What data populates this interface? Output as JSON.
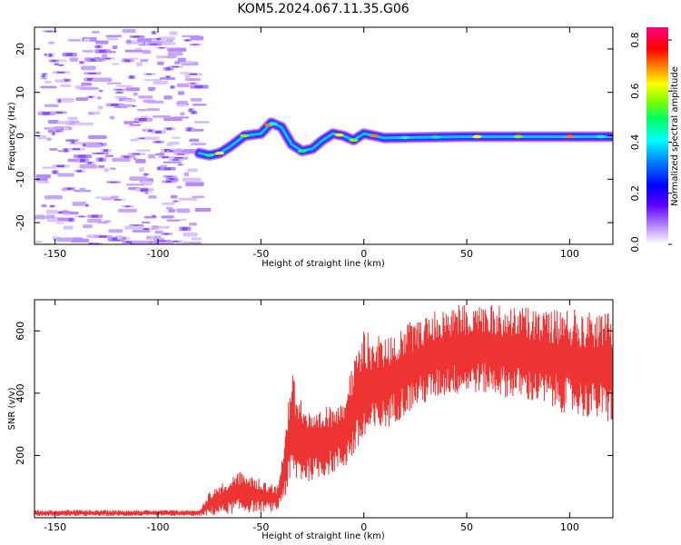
{
  "title": "KOM5.2024.067.11.35.G06",
  "chart_data": [
    {
      "type": "heatmap",
      "xlabel": "Height of straight line (km)",
      "ylabel": "Frequency (Hz)",
      "xlim": [
        -160,
        121
      ],
      "ylim": [
        -25,
        25
      ],
      "xticks": [
        -150,
        -100,
        -50,
        0,
        50,
        100
      ],
      "yticks": [
        -20,
        -10,
        0,
        10,
        20
      ],
      "colorbar": {
        "label": "Normalized spectral amplitude",
        "range": [
          0.0,
          0.85
        ],
        "ticks": [
          "0.0",
          "0.2",
          "0.4",
          "0.6",
          "0.8"
        ]
      },
      "ridge_frequency_hz": [
        {
          "x": -80,
          "y": -4
        },
        {
          "x": -75,
          "y": -4.5
        },
        {
          "x": -70,
          "y": -4
        },
        {
          "x": -65,
          "y": -2.5
        },
        {
          "x": -58,
          "y": 0
        },
        {
          "x": -50,
          "y": 0.5
        },
        {
          "x": -45,
          "y": 3
        },
        {
          "x": -40,
          "y": 2
        },
        {
          "x": -35,
          "y": -2
        },
        {
          "x": -30,
          "y": -3.5
        },
        {
          "x": -25,
          "y": -3
        },
        {
          "x": -20,
          "y": -1
        },
        {
          "x": -15,
          "y": 0.5
        },
        {
          "x": -10,
          "y": 0
        },
        {
          "x": -5,
          "y": -1
        },
        {
          "x": 0,
          "y": 0.5
        },
        {
          "x": 10,
          "y": -0.5
        },
        {
          "x": 50,
          "y": -0.2
        },
        {
          "x": 120,
          "y": -0.2
        }
      ],
      "noise_region_x": [
        -160,
        -82
      ]
    },
    {
      "type": "line",
      "xlabel": "Height of straight line (km)",
      "ylabel": "SNR (v/v)",
      "xlim": [
        -160,
        121
      ],
      "ylim": [
        0,
        700
      ],
      "xticks": [
        -150,
        -100,
        -50,
        0,
        50,
        100
      ],
      "yticks": [
        200,
        400,
        600
      ],
      "color": "#ee3333",
      "envelope": [
        {
          "x": -160,
          "low": 5,
          "high": 25
        },
        {
          "x": -80,
          "low": 5,
          "high": 25
        },
        {
          "x": -75,
          "low": 5,
          "high": 85
        },
        {
          "x": -60,
          "low": 15,
          "high": 150
        },
        {
          "x": -42,
          "low": 20,
          "high": 100
        },
        {
          "x": -35,
          "low": 100,
          "high": 470
        },
        {
          "x": -25,
          "low": 120,
          "high": 320
        },
        {
          "x": -10,
          "low": 150,
          "high": 400
        },
        {
          "x": 0,
          "low": 230,
          "high": 600
        },
        {
          "x": 10,
          "low": 280,
          "high": 580
        },
        {
          "x": 25,
          "low": 350,
          "high": 640
        },
        {
          "x": 40,
          "low": 390,
          "high": 680
        },
        {
          "x": 55,
          "low": 400,
          "high": 690
        },
        {
          "x": 75,
          "low": 380,
          "high": 680
        },
        {
          "x": 100,
          "low": 330,
          "high": 670
        },
        {
          "x": 121,
          "low": 300,
          "high": 660
        }
      ]
    }
  ]
}
